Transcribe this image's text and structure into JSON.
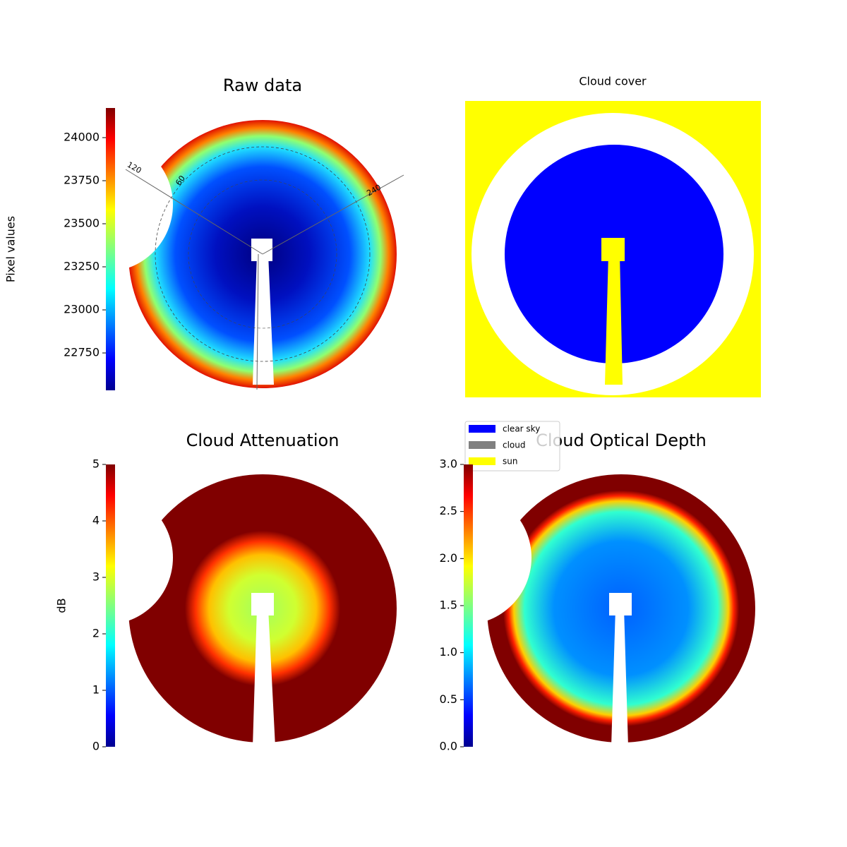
{
  "chart_data": [
    {
      "type": "image",
      "title": "Raw data",
      "colorbar": {
        "label": "Pixel values",
        "lim": [
          22533,
          24172
        ],
        "ticks": [
          22750,
          23000,
          23250,
          23500,
          23750,
          24000
        ],
        "colormap": "jet"
      },
      "polar_labels": [
        "120",
        "60",
        "240"
      ]
    },
    {
      "type": "image",
      "title": "Cloud cover",
      "legend": [
        {
          "name": "clear sky",
          "color": "#0000ff"
        },
        {
          "name": "cloud",
          "color": "#808080"
        },
        {
          "name": "sun",
          "color": "#ffff00"
        }
      ]
    },
    {
      "type": "image",
      "title": "Cloud Attenuation",
      "colorbar": {
        "label": "dB",
        "lim": [
          0,
          5
        ],
        "ticks": [
          0,
          1,
          2,
          3,
          4,
          5
        ],
        "colormap": "jet"
      }
    },
    {
      "type": "image",
      "title": "Cloud Optical Depth",
      "colorbar": {
        "lim": [
          0,
          3
        ],
        "ticks": [
          {
            "value": 0,
            "label": "0.0"
          },
          {
            "value": 0.5,
            "label": "0.5"
          },
          {
            "value": 1,
            "label": "1.0"
          },
          {
            "value": 1.5,
            "label": "1.5"
          },
          {
            "value": 2,
            "label": "2.0"
          },
          {
            "value": 2.5,
            "label": "2.5"
          },
          {
            "value": 3,
            "label": "3.0"
          }
        ],
        "colormap": "jet"
      }
    }
  ]
}
